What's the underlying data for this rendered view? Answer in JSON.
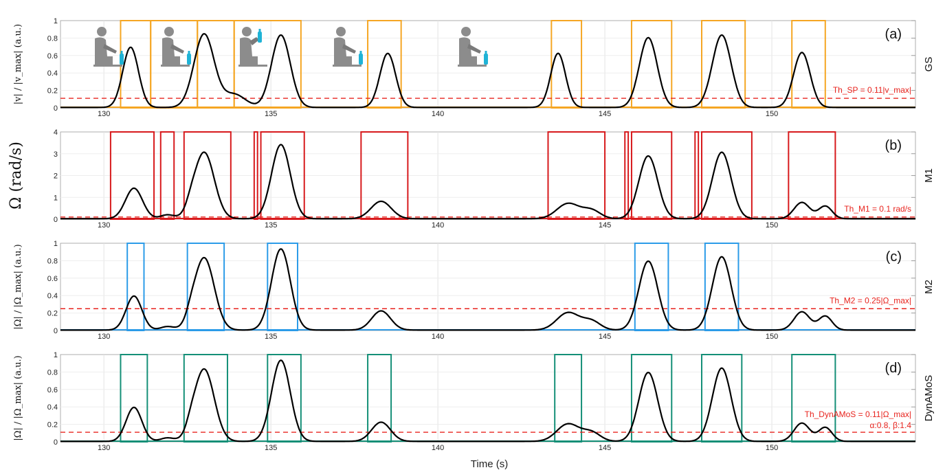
{
  "chart_data": [
    {
      "panel": "(a)",
      "method": "GS",
      "type": "line",
      "ylabel": "|v| / |v_max| (a.u.)",
      "ylim": [
        0,
        1
      ],
      "yticks": [
        "0",
        "0.2",
        "0.4",
        "0.6",
        "0.8",
        "1"
      ],
      "xlim": [
        128.7,
        154.3
      ],
      "xticks": [
        "130",
        "135",
        "140",
        "145",
        "150"
      ],
      "threshold": {
        "value": 0.11,
        "label": "Th_SP = 0.11|v_max|"
      },
      "box_color": "#f5a623",
      "box_top": 1,
      "peaks": [
        {
          "x": 130.8,
          "h": 0.69,
          "w": 0.35
        },
        {
          "x": 133.0,
          "h": 0.84,
          "w": 0.45
        },
        {
          "x": 133.9,
          "h": 0.15,
          "w": 0.5
        },
        {
          "x": 135.3,
          "h": 0.83,
          "w": 0.42
        },
        {
          "x": 138.5,
          "h": 0.62,
          "w": 0.35
        },
        {
          "x": 143.6,
          "h": 0.62,
          "w": 0.33
        },
        {
          "x": 146.3,
          "h": 0.8,
          "w": 0.4
        },
        {
          "x": 148.5,
          "h": 0.83,
          "w": 0.42
        },
        {
          "x": 150.9,
          "h": 0.63,
          "w": 0.37
        }
      ],
      "segments": [
        [
          130.5,
          131.4
        ],
        [
          131.4,
          132.8
        ],
        [
          132.8,
          133.9
        ],
        [
          133.9,
          135.9
        ],
        [
          137.9,
          138.9
        ],
        [
          143.4,
          144.3
        ],
        [
          145.8,
          147.0
        ],
        [
          147.9,
          149.2
        ],
        [
          150.6,
          151.6
        ]
      ]
    },
    {
      "panel": "(b)",
      "method": "M1",
      "type": "line",
      "ylabel": "Ω (rad/s)",
      "ylim": [
        0,
        4
      ],
      "yticks": [
        "0",
        "1",
        "2",
        "3",
        "4"
      ],
      "xlim": [
        128.7,
        154.3
      ],
      "xticks": [
        "130",
        "135",
        "140",
        "145",
        "150"
      ],
      "threshold": {
        "value": 0.1,
        "label": "Th_M1 = 0.1 rad/s"
      },
      "box_color": "#d7191c",
      "box_top": 4,
      "peaks": [
        {
          "x": 130.9,
          "h": 1.4,
          "w": 0.38
        },
        {
          "x": 131.9,
          "h": 0.18,
          "w": 0.3
        },
        {
          "x": 132.6,
          "h": 0.22,
          "w": 0.2
        },
        {
          "x": 133.0,
          "h": 3.05,
          "w": 0.45
        },
        {
          "x": 135.3,
          "h": 3.4,
          "w": 0.42
        },
        {
          "x": 138.3,
          "h": 0.8,
          "w": 0.45
        },
        {
          "x": 143.9,
          "h": 0.7,
          "w": 0.5
        },
        {
          "x": 144.6,
          "h": 0.38,
          "w": 0.4
        },
        {
          "x": 146.3,
          "h": 2.88,
          "w": 0.42
        },
        {
          "x": 148.5,
          "h": 3.05,
          "w": 0.42
        },
        {
          "x": 150.9,
          "h": 0.75,
          "w": 0.35
        },
        {
          "x": 151.6,
          "h": 0.58,
          "w": 0.3
        }
      ],
      "segments": [
        [
          130.2,
          131.5
        ],
        [
          131.7,
          132.1
        ],
        [
          132.4,
          133.8
        ],
        [
          134.5,
          134.6
        ],
        [
          134.7,
          136.0
        ],
        [
          137.7,
          139.1
        ],
        [
          143.3,
          145.0
        ],
        [
          145.6,
          145.7
        ],
        [
          145.8,
          147.0
        ],
        [
          147.7,
          147.8
        ],
        [
          147.9,
          149.4
        ],
        [
          150.5,
          151.9
        ]
      ]
    },
    {
      "panel": "(c)",
      "method": "M2",
      "type": "line",
      "ylabel": "|Ω| / |Ω_max| (a.u.)",
      "ylim": [
        0,
        1
      ],
      "yticks": [
        "0",
        "0.2",
        "0.4",
        "0.6",
        "0.8",
        "1"
      ],
      "xlim": [
        128.7,
        154.3
      ],
      "xticks": [
        "130",
        "135",
        "140",
        "145",
        "150"
      ],
      "threshold": {
        "value": 0.25,
        "label": "Th_M2 = 0.25|Ω_max|"
      },
      "box_color": "#2b9be8",
      "box_top": 1,
      "peaks": [
        {
          "x": 130.9,
          "h": 0.39,
          "w": 0.35
        },
        {
          "x": 131.9,
          "h": 0.04,
          "w": 0.3
        },
        {
          "x": 132.6,
          "h": 0.06,
          "w": 0.2
        },
        {
          "x": 133.0,
          "h": 0.83,
          "w": 0.45
        },
        {
          "x": 135.3,
          "h": 0.93,
          "w": 0.42
        },
        {
          "x": 138.3,
          "h": 0.22,
          "w": 0.42
        },
        {
          "x": 143.9,
          "h": 0.2,
          "w": 0.5
        },
        {
          "x": 144.6,
          "h": 0.1,
          "w": 0.4
        },
        {
          "x": 146.3,
          "h": 0.79,
          "w": 0.42
        },
        {
          "x": 148.5,
          "h": 0.84,
          "w": 0.42
        },
        {
          "x": 150.9,
          "h": 0.21,
          "w": 0.35
        },
        {
          "x": 151.6,
          "h": 0.16,
          "w": 0.3
        }
      ],
      "segments": [
        [
          130.7,
          131.2
        ],
        [
          132.5,
          133.6
        ],
        [
          134.9,
          135.8
        ],
        [
          145.9,
          146.9
        ],
        [
          148.0,
          149.0
        ]
      ]
    },
    {
      "panel": "(d)",
      "method": "DynAMoS",
      "type": "line",
      "ylabel": "|Ω| / |Ω_max| (a.u.)",
      "ylim": [
        0,
        1
      ],
      "yticks": [
        "0",
        "0.2",
        "0.4",
        "0.6",
        "0.8",
        "1"
      ],
      "xlim": [
        128.7,
        154.3
      ],
      "xticks": [
        "130",
        "135",
        "140",
        "145",
        "150"
      ],
      "xlabel": "Time (s)",
      "threshold": {
        "value": 0.11,
        "label": "Th_DynAMoS = 0.11|Ω_max|",
        "sublabel": "α:0.8, β:1.4"
      },
      "box_color": "#148f77",
      "box_top": 1,
      "peaks": [
        {
          "x": 130.9,
          "h": 0.39,
          "w": 0.35
        },
        {
          "x": 131.9,
          "h": 0.04,
          "w": 0.3
        },
        {
          "x": 132.6,
          "h": 0.06,
          "w": 0.2
        },
        {
          "x": 133.0,
          "h": 0.83,
          "w": 0.45
        },
        {
          "x": 135.3,
          "h": 0.93,
          "w": 0.42
        },
        {
          "x": 138.3,
          "h": 0.22,
          "w": 0.42
        },
        {
          "x": 143.9,
          "h": 0.2,
          "w": 0.5
        },
        {
          "x": 144.6,
          "h": 0.1,
          "w": 0.4
        },
        {
          "x": 146.3,
          "h": 0.79,
          "w": 0.42
        },
        {
          "x": 148.5,
          "h": 0.84,
          "w": 0.42
        },
        {
          "x": 150.9,
          "h": 0.21,
          "w": 0.35
        },
        {
          "x": 151.6,
          "h": 0.16,
          "w": 0.3
        }
      ],
      "segments": [
        [
          130.5,
          131.3
        ],
        [
          132.4,
          133.7
        ],
        [
          134.9,
          135.9
        ],
        [
          137.9,
          138.6
        ],
        [
          143.5,
          144.3
        ],
        [
          145.8,
          147.0
        ],
        [
          147.9,
          149.1
        ],
        [
          150.6,
          151.9
        ]
      ]
    }
  ],
  "icons": [
    "person-bottle-icon",
    "person-reach-bottle-icon",
    "person-drink-icon",
    "person-place-bottle-icon",
    "person-rest-icon"
  ]
}
